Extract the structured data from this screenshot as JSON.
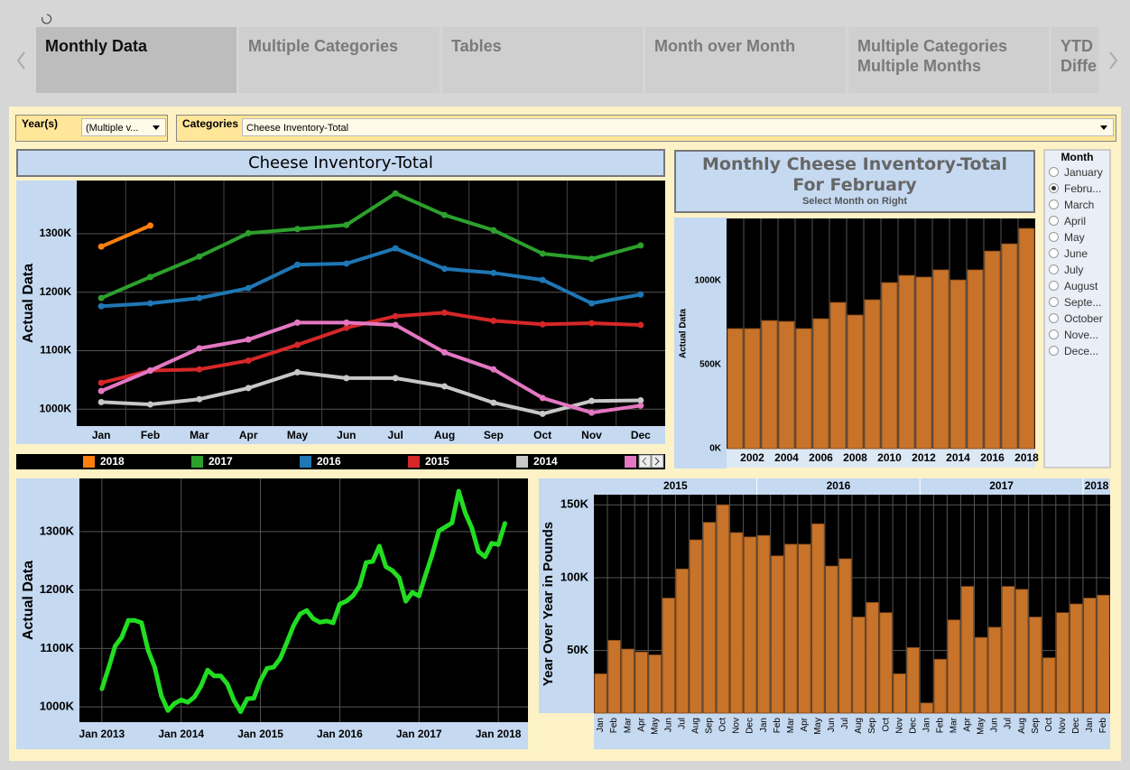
{
  "tabs": [
    "Monthly Data",
    "Multiple Categories",
    "Tables",
    "Month over Month",
    "Multiple Categories Multiple Months",
    "YTD Diffe"
  ],
  "filters": {
    "year_label": "Year(s)",
    "year_value": "(Multiple v...",
    "category_label": "Categories",
    "category_value": "Cheese Inventory-Total"
  },
  "month_filter": {
    "title": "Month",
    "options": [
      "January",
      "Febru...",
      "March",
      "April",
      "May",
      "June",
      "July",
      "August",
      "Septe...",
      "October",
      "Nove...",
      "Dece..."
    ],
    "selected": 1
  },
  "chart_data": [
    {
      "type": "line",
      "title": "Cheese Inventory-Total",
      "ylabel": "Actual Data",
      "categories": [
        "Jan",
        "Feb",
        "Mar",
        "Apr",
        "May",
        "Jun",
        "Jul",
        "Aug",
        "Sep",
        "Oct",
        "Nov",
        "Dec"
      ],
      "series": [
        {
          "name": "2018",
          "color": "#ff7f0e",
          "values": [
            1278,
            1314,
            null,
            null,
            null,
            null,
            null,
            null,
            null,
            null,
            null,
            null
          ]
        },
        {
          "name": "2017",
          "color": "#2ca02c",
          "values": [
            1190,
            1226,
            1261,
            1301,
            1308,
            1315,
            1369,
            1332,
            1306,
            1266,
            1257,
            1280
          ]
        },
        {
          "name": "2016",
          "color": "#1f77b4",
          "values": [
            1176,
            1181,
            1190,
            1207,
            1247,
            1249,
            1275,
            1240,
            1233,
            1221,
            1181,
            1196
          ]
        },
        {
          "name": "2015",
          "color": "#d62728",
          "values": [
            1045,
            1066,
            1068,
            1083,
            1110,
            1139,
            1159,
            1165,
            1151,
            1145,
            1147,
            1144
          ]
        },
        {
          "name": "2014",
          "color": "#c7c7c7",
          "values": [
            1012,
            1008,
            1017,
            1036,
            1063,
            1053,
            1053,
            1039,
            1011,
            992,
            1014,
            1015
          ]
        },
        {
          "color": "#e377c2",
          "values": [
            1031,
            1066,
            1104,
            1119,
            1148,
            1148,
            1144,
            1097,
            1068,
            1019,
            994,
            1006
          ]
        }
      ],
      "ylim": [
        971,
        1391
      ],
      "yticks": [
        {
          "value": 1000,
          "label": "1000K"
        },
        {
          "value": 1100,
          "label": "1100K"
        },
        {
          "value": 1200,
          "label": "1200K"
        },
        {
          "value": 1300,
          "label": "1300K"
        }
      ],
      "grid": true,
      "legend": "bottom"
    },
    {
      "type": "bar",
      "title": "Monthly Cheese Inventory-Total For February",
      "subtitle": "Select Month on Right",
      "ylabel": "Actual Data",
      "categories": [
        null,
        "2002",
        null,
        "2004",
        null,
        "2006",
        null,
        "2008",
        null,
        "2010",
        null,
        "2012",
        null,
        "2014",
        null,
        "2016",
        null,
        "2018"
      ],
      "values": [
        715,
        715,
        763,
        758,
        715,
        774,
        871,
        796,
        887,
        989,
        1032,
        1022,
        1065,
        1005,
        1065,
        1177,
        1220,
        1312
      ],
      "color": "#c8732a",
      "ylim": [
        0,
        1371
      ],
      "yticks": [
        {
          "value": 0,
          "label": "0K"
        },
        {
          "value": 500,
          "label": "500K"
        },
        {
          "value": 1000,
          "label": "1000K"
        }
      ],
      "grid": false
    },
    {
      "type": "line",
      "ylabel": "Actual Data",
      "x": [
        "2013-01",
        "2013-02",
        "2013-03",
        "2013-04",
        "2013-05",
        "2013-06",
        "2013-07",
        "2013-08",
        "2013-09",
        "2013-10",
        "2013-11",
        "2013-12",
        "2014-01",
        "2014-02",
        "2014-03",
        "2014-04",
        "2014-05",
        "2014-06",
        "2014-07",
        "2014-08",
        "2014-09",
        "2014-10",
        "2014-11",
        "2014-12",
        "2015-01",
        "2015-02",
        "2015-03",
        "2015-04",
        "2015-05",
        "2015-06",
        "2015-07",
        "2015-08",
        "2015-09",
        "2015-10",
        "2015-11",
        "2015-12",
        "2016-01",
        "2016-02",
        "2016-03",
        "2016-04",
        "2016-05",
        "2016-06",
        "2016-07",
        "2016-08",
        "2016-09",
        "2016-10",
        "2016-11",
        "2016-12",
        "2017-01",
        "2017-02",
        "2017-03",
        "2017-04",
        "2017-05",
        "2017-06",
        "2017-07",
        "2017-08",
        "2017-09",
        "2017-10",
        "2017-11",
        "2017-12",
        "2018-01",
        "2018-02"
      ],
      "series": [
        {
          "color": "#22dd22",
          "values": [
            1031,
            1066,
            1104,
            1119,
            1148,
            1148,
            1144,
            1097,
            1068,
            1019,
            994,
            1006,
            1012,
            1008,
            1017,
            1036,
            1063,
            1053,
            1053,
            1039,
            1011,
            992,
            1014,
            1015,
            1045,
            1066,
            1068,
            1083,
            1110,
            1139,
            1159,
            1165,
            1151,
            1145,
            1147,
            1144,
            1176,
            1181,
            1190,
            1207,
            1247,
            1249,
            1275,
            1240,
            1233,
            1221,
            1181,
            1196,
            1190,
            1226,
            1261,
            1301,
            1308,
            1315,
            1369,
            1332,
            1306,
            1266,
            1257,
            1280,
            1278,
            1314
          ]
        }
      ],
      "xticks": [
        {
          "value": "2013-01",
          "label": "Jan 2013"
        },
        {
          "value": "2014-01",
          "label": "Jan 2014"
        },
        {
          "value": "2015-01",
          "label": "Jan 2015"
        },
        {
          "value": "2016-01",
          "label": "Jan 2016"
        },
        {
          "value": "2017-01",
          "label": "Jan 2017"
        },
        {
          "value": "2018-01",
          "label": "Jan 2018"
        }
      ],
      "ylim": [
        974,
        1391
      ],
      "yticks": [
        {
          "value": 1000,
          "label": "1000K"
        },
        {
          "value": 1100,
          "label": "1100K"
        },
        {
          "value": 1200,
          "label": "1200K"
        },
        {
          "value": 1300,
          "label": "1300K"
        }
      ],
      "grid": true
    },
    {
      "type": "bar",
      "ylabel": "Year Over Year in Pounds",
      "groups": [
        {
          "label": "2015",
          "categories": [
            "Jan",
            "Feb",
            "Mar",
            "Apr",
            "May",
            "Jun",
            "Jul",
            "Aug",
            "Sep",
            "Oct",
            "Nov",
            "Dec"
          ],
          "values": [
            34,
            57,
            51,
            49,
            47,
            86,
            106,
            126,
            138,
            150,
            131,
            128
          ]
        },
        {
          "label": "2016",
          "categories": [
            "Jan",
            "Feb",
            "Mar",
            "Apr",
            "May",
            "Jun",
            "Jul",
            "Aug",
            "Sep",
            "Oct",
            "Nov",
            "Dec"
          ],
          "values": [
            129,
            115,
            123,
            123,
            137,
            108,
            113,
            73,
            83,
            76,
            34,
            52
          ]
        },
        {
          "label": "2017",
          "categories": [
            "Jan",
            "Feb",
            "Mar",
            "Apr",
            "May",
            "Jun",
            "Jul",
            "Aug",
            "Sep",
            "Oct",
            "Nov",
            "Dec"
          ],
          "values": [
            14,
            44,
            71,
            94,
            59,
            66,
            94,
            92,
            73,
            45,
            76,
            82
          ]
        },
        {
          "label": "2018",
          "categories": [
            "Jan",
            "Feb"
          ],
          "values": [
            86,
            88
          ]
        }
      ],
      "color": "#c8732a",
      "ylim": [
        7,
        157
      ],
      "yticks": [
        {
          "value": 50,
          "label": "50K"
        },
        {
          "value": 100,
          "label": "100K"
        },
        {
          "value": 150,
          "label": "150K"
        }
      ],
      "grid": true
    }
  ]
}
